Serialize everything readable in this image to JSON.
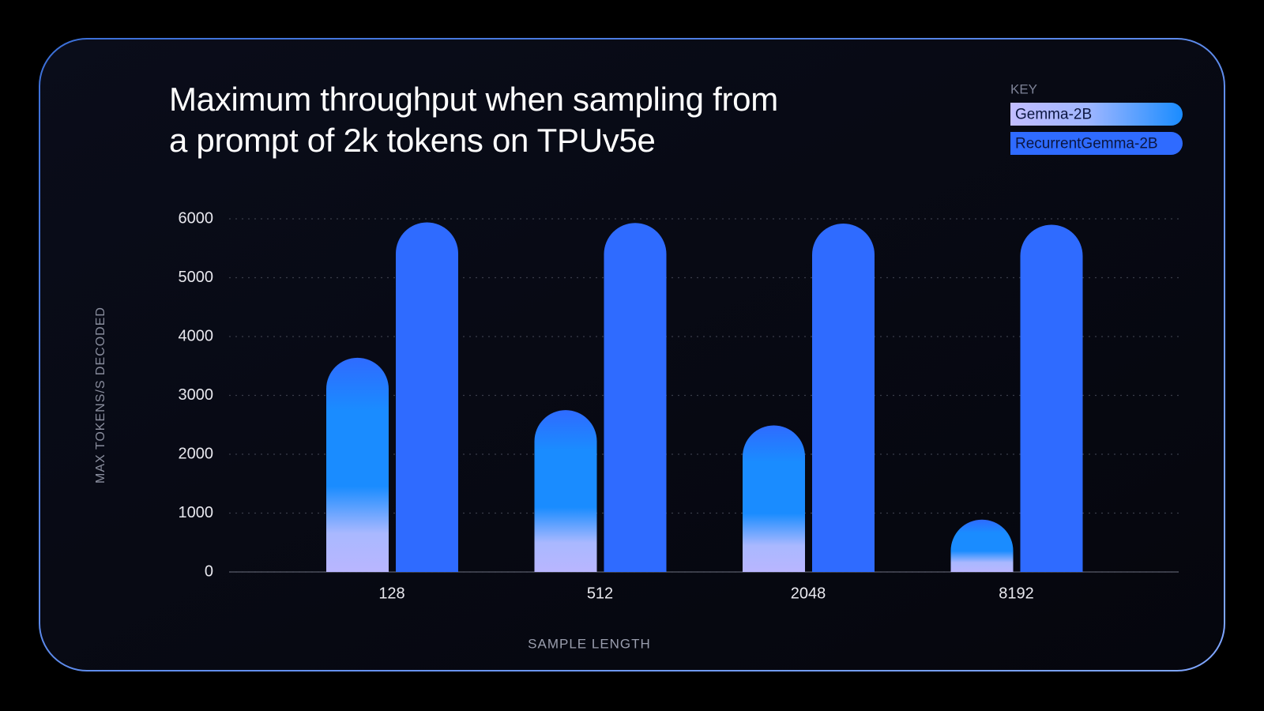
{
  "chart_data": {
    "type": "bar",
    "title": "Maximum throughput when sampling from a prompt of 2k tokens on TPUv5e",
    "legend_title": "KEY",
    "x_label": "SAMPLE LENGTH",
    "y_label": "MAX TOKENS/S DECODED",
    "categories": [
      "128",
      "512",
      "2048",
      "8192"
    ],
    "series": [
      {
        "name": "Gemma-2B",
        "color": "#1a8cff",
        "values": [
          3640,
          2750,
          2490,
          890
        ]
      },
      {
        "name": "RecurrentGemma-2B",
        "color": "#2f6bff",
        "values": [
          5940,
          5930,
          5920,
          5900
        ]
      }
    ],
    "ylim": [
      0,
      6000
    ],
    "yticks": [
      0,
      1000,
      2000,
      3000,
      4000,
      5000,
      6000
    ],
    "grid": true,
    "legend_position": "top-right"
  }
}
